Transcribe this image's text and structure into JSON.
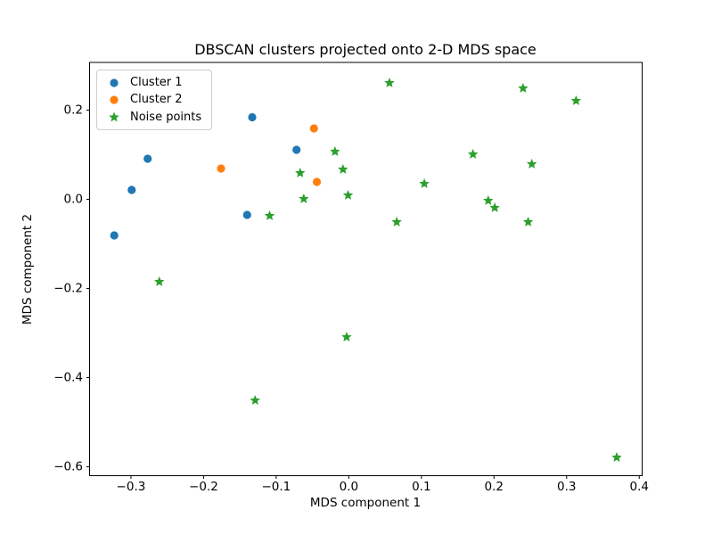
{
  "figure": {
    "background": "#ffffff"
  },
  "legend": {
    "position": "upper left",
    "entries": [
      {
        "label": "Cluster 1",
        "marker": "circle",
        "color": "#1f77b4"
      },
      {
        "label": "Cluster 2",
        "marker": "circle",
        "color": "#ff7f0e"
      },
      {
        "label": "Noise points",
        "marker": "star",
        "color": "#2ca02c"
      }
    ]
  },
  "chart_data": {
    "type": "scatter",
    "title": "DBSCAN clusters projected onto 2-D MDS space",
    "xlabel": "MDS component 1",
    "ylabel": "MDS component 2",
    "xlim": [
      -0.357,
      0.404
    ],
    "ylim": [
      -0.62,
      0.307
    ],
    "xticks": [
      -0.3,
      -0.2,
      -0.1,
      0.0,
      0.1,
      0.2,
      0.3,
      0.4
    ],
    "xtick_labels": [
      "−0.3",
      "−0.2",
      "−0.1",
      "0.0",
      "0.1",
      "0.2",
      "0.3",
      "0.4"
    ],
    "yticks": [
      -0.6,
      -0.4,
      -0.2,
      0.0,
      0.2
    ],
    "ytick_labels": [
      "−0.6",
      "−0.4",
      "−0.2",
      "0.0",
      "0.2"
    ],
    "grid": false,
    "legend_position": "upper left",
    "series": [
      {
        "name": "Cluster 1",
        "marker": "circle",
        "color": "#1f77b4",
        "points": [
          [
            -0.323,
            -0.081
          ],
          [
            -0.299,
            0.021
          ],
          [
            -0.277,
            0.091
          ],
          [
            -0.14,
            -0.035
          ],
          [
            -0.133,
            0.184
          ],
          [
            -0.072,
            0.111
          ]
        ]
      },
      {
        "name": "Cluster 2",
        "marker": "circle",
        "color": "#ff7f0e",
        "points": [
          [
            -0.176,
            0.069
          ],
          [
            -0.048,
            0.159
          ],
          [
            -0.044,
            0.039
          ]
        ]
      },
      {
        "name": "Noise points",
        "marker": "star",
        "color": "#2ca02c",
        "points": [
          [
            0.056,
            0.261
          ],
          [
            0.24,
            0.249
          ],
          [
            0.313,
            0.221
          ],
          [
            -0.019,
            0.107
          ],
          [
            0.171,
            0.101
          ],
          [
            -0.008,
            0.067
          ],
          [
            -0.067,
            0.059
          ],
          [
            0.252,
            0.079
          ],
          [
            0.104,
            0.035
          ],
          [
            -0.062,
            0.001
          ],
          [
            -0.001,
            0.009
          ],
          [
            0.192,
            -0.003
          ],
          [
            0.201,
            -0.019
          ],
          [
            0.066,
            -0.051
          ],
          [
            0.247,
            -0.051
          ],
          [
            -0.109,
            -0.037
          ],
          [
            -0.261,
            -0.185
          ],
          [
            -0.003,
            -0.309
          ],
          [
            -0.129,
            -0.451
          ],
          [
            0.369,
            -0.579
          ]
        ]
      }
    ]
  }
}
